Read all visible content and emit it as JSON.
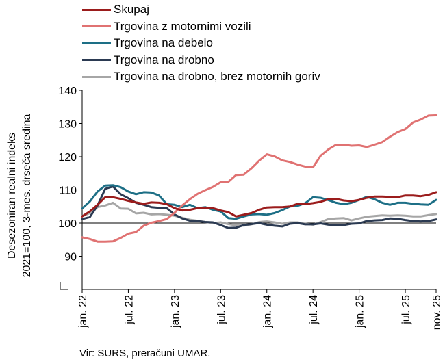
{
  "chart_data": {
    "type": "line",
    "ylabel_line1": "Desezoniran realni indeks",
    "ylabel_line2": "2021=100, 3-mes. drseča sredina",
    "ylim": [
      80,
      140
    ],
    "yticks": [
      90,
      100,
      110,
      120,
      130,
      140
    ],
    "reference_line": 100,
    "x_tick_labels": [
      "jan. 22",
      "jul. 22",
      "jan. 23",
      "jul. 23",
      "jan. 24",
      "jul. 24",
      "jan. 25",
      "jul. 25",
      "nov. 25"
    ],
    "x_tick_index": [
      0,
      6,
      12,
      18,
      24,
      30,
      36,
      42,
      46
    ],
    "n_points": 47,
    "legend_position": "top-left",
    "series": [
      {
        "name": "Skupaj",
        "color": "#9b1c1c",
        "values": [
          102.0,
          103.5,
          105.5,
          107.8,
          107.8,
          107.3,
          106.7,
          106.2,
          105.8,
          106.2,
          106.1,
          105.7,
          104.5,
          103.8,
          104.0,
          104.5,
          104.5,
          104.5,
          103.8,
          103.3,
          102.0,
          102.5,
          103.0,
          104.0,
          104.7,
          104.8,
          104.8,
          105.0,
          105.8,
          105.7,
          106.0,
          106.4,
          107.2,
          107.3,
          106.8,
          106.6,
          107.0,
          107.6,
          108.0,
          108.0,
          107.9,
          107.8,
          108.3,
          108.3,
          108.1,
          108.5,
          109.3
        ]
      },
      {
        "name": "Trgovina z motornimi vozili",
        "color": "#e07272",
        "values": [
          95.7,
          95.2,
          94.4,
          94.4,
          94.5,
          95.5,
          96.8,
          97.3,
          99.2,
          100.1,
          100.6,
          101.2,
          103.1,
          105.3,
          107.2,
          108.8,
          109.9,
          110.9,
          112.3,
          112.4,
          114.5,
          114.6,
          116.5,
          118.8,
          120.7,
          120.1,
          118.9,
          118.4,
          117.6,
          117.0,
          116.8,
          120.3,
          122.2,
          123.6,
          123.6,
          123.3,
          123.4,
          122.9,
          123.6,
          124.4,
          126.0,
          127.4,
          128.3,
          130.3,
          131.2,
          132.4,
          132.5
        ]
      },
      {
        "name": "Trgovina na debelo",
        "color": "#1d6f86",
        "values": [
          104.4,
          106.5,
          109.5,
          111.3,
          111.4,
          110.8,
          109.5,
          108.7,
          109.3,
          109.2,
          108.3,
          105.7,
          105.5,
          104.8,
          105.5,
          104.5,
          104.8,
          104.0,
          103.5,
          101.5,
          101.3,
          102.0,
          102.6,
          102.7,
          102.5,
          103.0,
          103.9,
          105.0,
          105.2,
          106.0,
          107.8,
          107.6,
          106.9,
          106.1,
          105.7,
          106.1,
          107.0,
          107.9,
          107.2,
          106.1,
          105.5,
          106.1,
          106.1,
          105.8,
          105.6,
          105.5,
          107.0
        ]
      },
      {
        "name": "Trgovina na drobno",
        "color": "#2b3a52",
        "values": [
          101.2,
          101.8,
          105.3,
          110.3,
          111.0,
          108.7,
          107.5,
          106.1,
          105.5,
          104.8,
          104.6,
          104.5,
          102.6,
          101.4,
          100.7,
          100.6,
          100.3,
          100.2,
          99.4,
          98.5,
          98.6,
          99.4,
          99.7,
          100.0,
          99.5,
          99.2,
          99.0,
          99.8,
          100.0,
          99.6,
          99.6,
          99.9,
          99.5,
          99.4,
          99.4,
          99.8,
          99.9,
          100.6,
          100.8,
          100.9,
          101.4,
          101.3,
          100.9,
          100.6,
          100.5,
          100.6,
          101.1
        ]
      },
      {
        "name": "Trgovina na drobno, brez motornih goriv",
        "color": "#a6a6a6",
        "values": [
          102.0,
          103.0,
          104.8,
          105.3,
          106.1,
          104.4,
          104.3,
          102.9,
          103.1,
          102.6,
          102.7,
          102.5,
          102.2,
          101.6,
          101.0,
          100.7,
          100.3,
          100.0,
          100.2,
          99.7,
          99.3,
          99.2,
          99.6,
          100.3,
          100.5,
          100.2,
          99.8,
          100.2,
          100.2,
          99.8,
          99.5,
          100.3,
          101.2,
          101.4,
          101.5,
          100.8,
          101.4,
          101.9,
          102.1,
          102.3,
          102.2,
          102.3,
          102.2,
          102.0,
          102.0,
          102.4,
          102.7
        ]
      }
    ]
  },
  "source_text": "Vir: SURS, preračuni UMAR."
}
